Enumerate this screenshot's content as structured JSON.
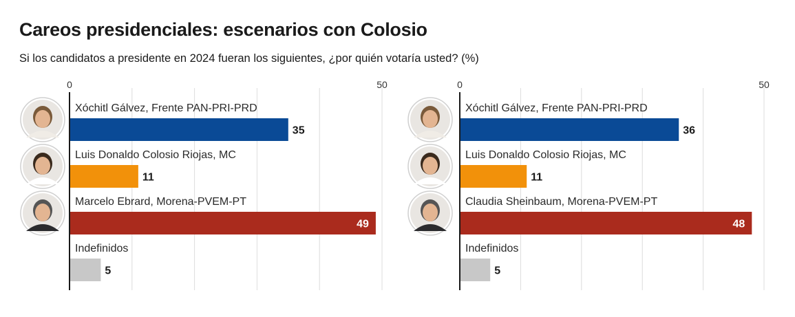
{
  "title": "Careos presidenciales: escenarios con Colosio",
  "subtitle": "Si los candidatos a presidente en 2024 fueran los siguientes, ¿por quién votaría usted? (%)",
  "chart_data": [
    {
      "type": "bar",
      "orientation": "horizontal",
      "xlim": [
        0,
        50
      ],
      "ticks": [
        0,
        50
      ],
      "grid": true,
      "categories": [
        "Xóchitl Gálvez, Frente PAN-PRI-PRD",
        "Luis Donaldo Colosio Riojas, MC",
        "Marcelo Ebrard, Morena-PVEM-PT",
        "Indefinidos"
      ],
      "values": [
        35,
        11,
        49,
        5
      ],
      "colors": [
        "#0a4a96",
        "#f2910a",
        "#aa2b1d",
        "#c8c8c8"
      ],
      "photos": [
        true,
        true,
        true,
        false
      ]
    },
    {
      "type": "bar",
      "orientation": "horizontal",
      "xlim": [
        0,
        50
      ],
      "ticks": [
        0,
        50
      ],
      "grid": true,
      "categories": [
        "Xóchitl Gálvez, Frente PAN-PRI-PRD",
        "Luis Donaldo Colosio Riojas, MC",
        "Claudia Sheinbaum, Morena-PVEM-PT",
        "Indefinidos"
      ],
      "values": [
        36,
        11,
        48,
        5
      ],
      "colors": [
        "#0a4a96",
        "#f2910a",
        "#aa2b1d",
        "#c8c8c8"
      ],
      "photos": [
        true,
        true,
        true,
        false
      ]
    }
  ]
}
